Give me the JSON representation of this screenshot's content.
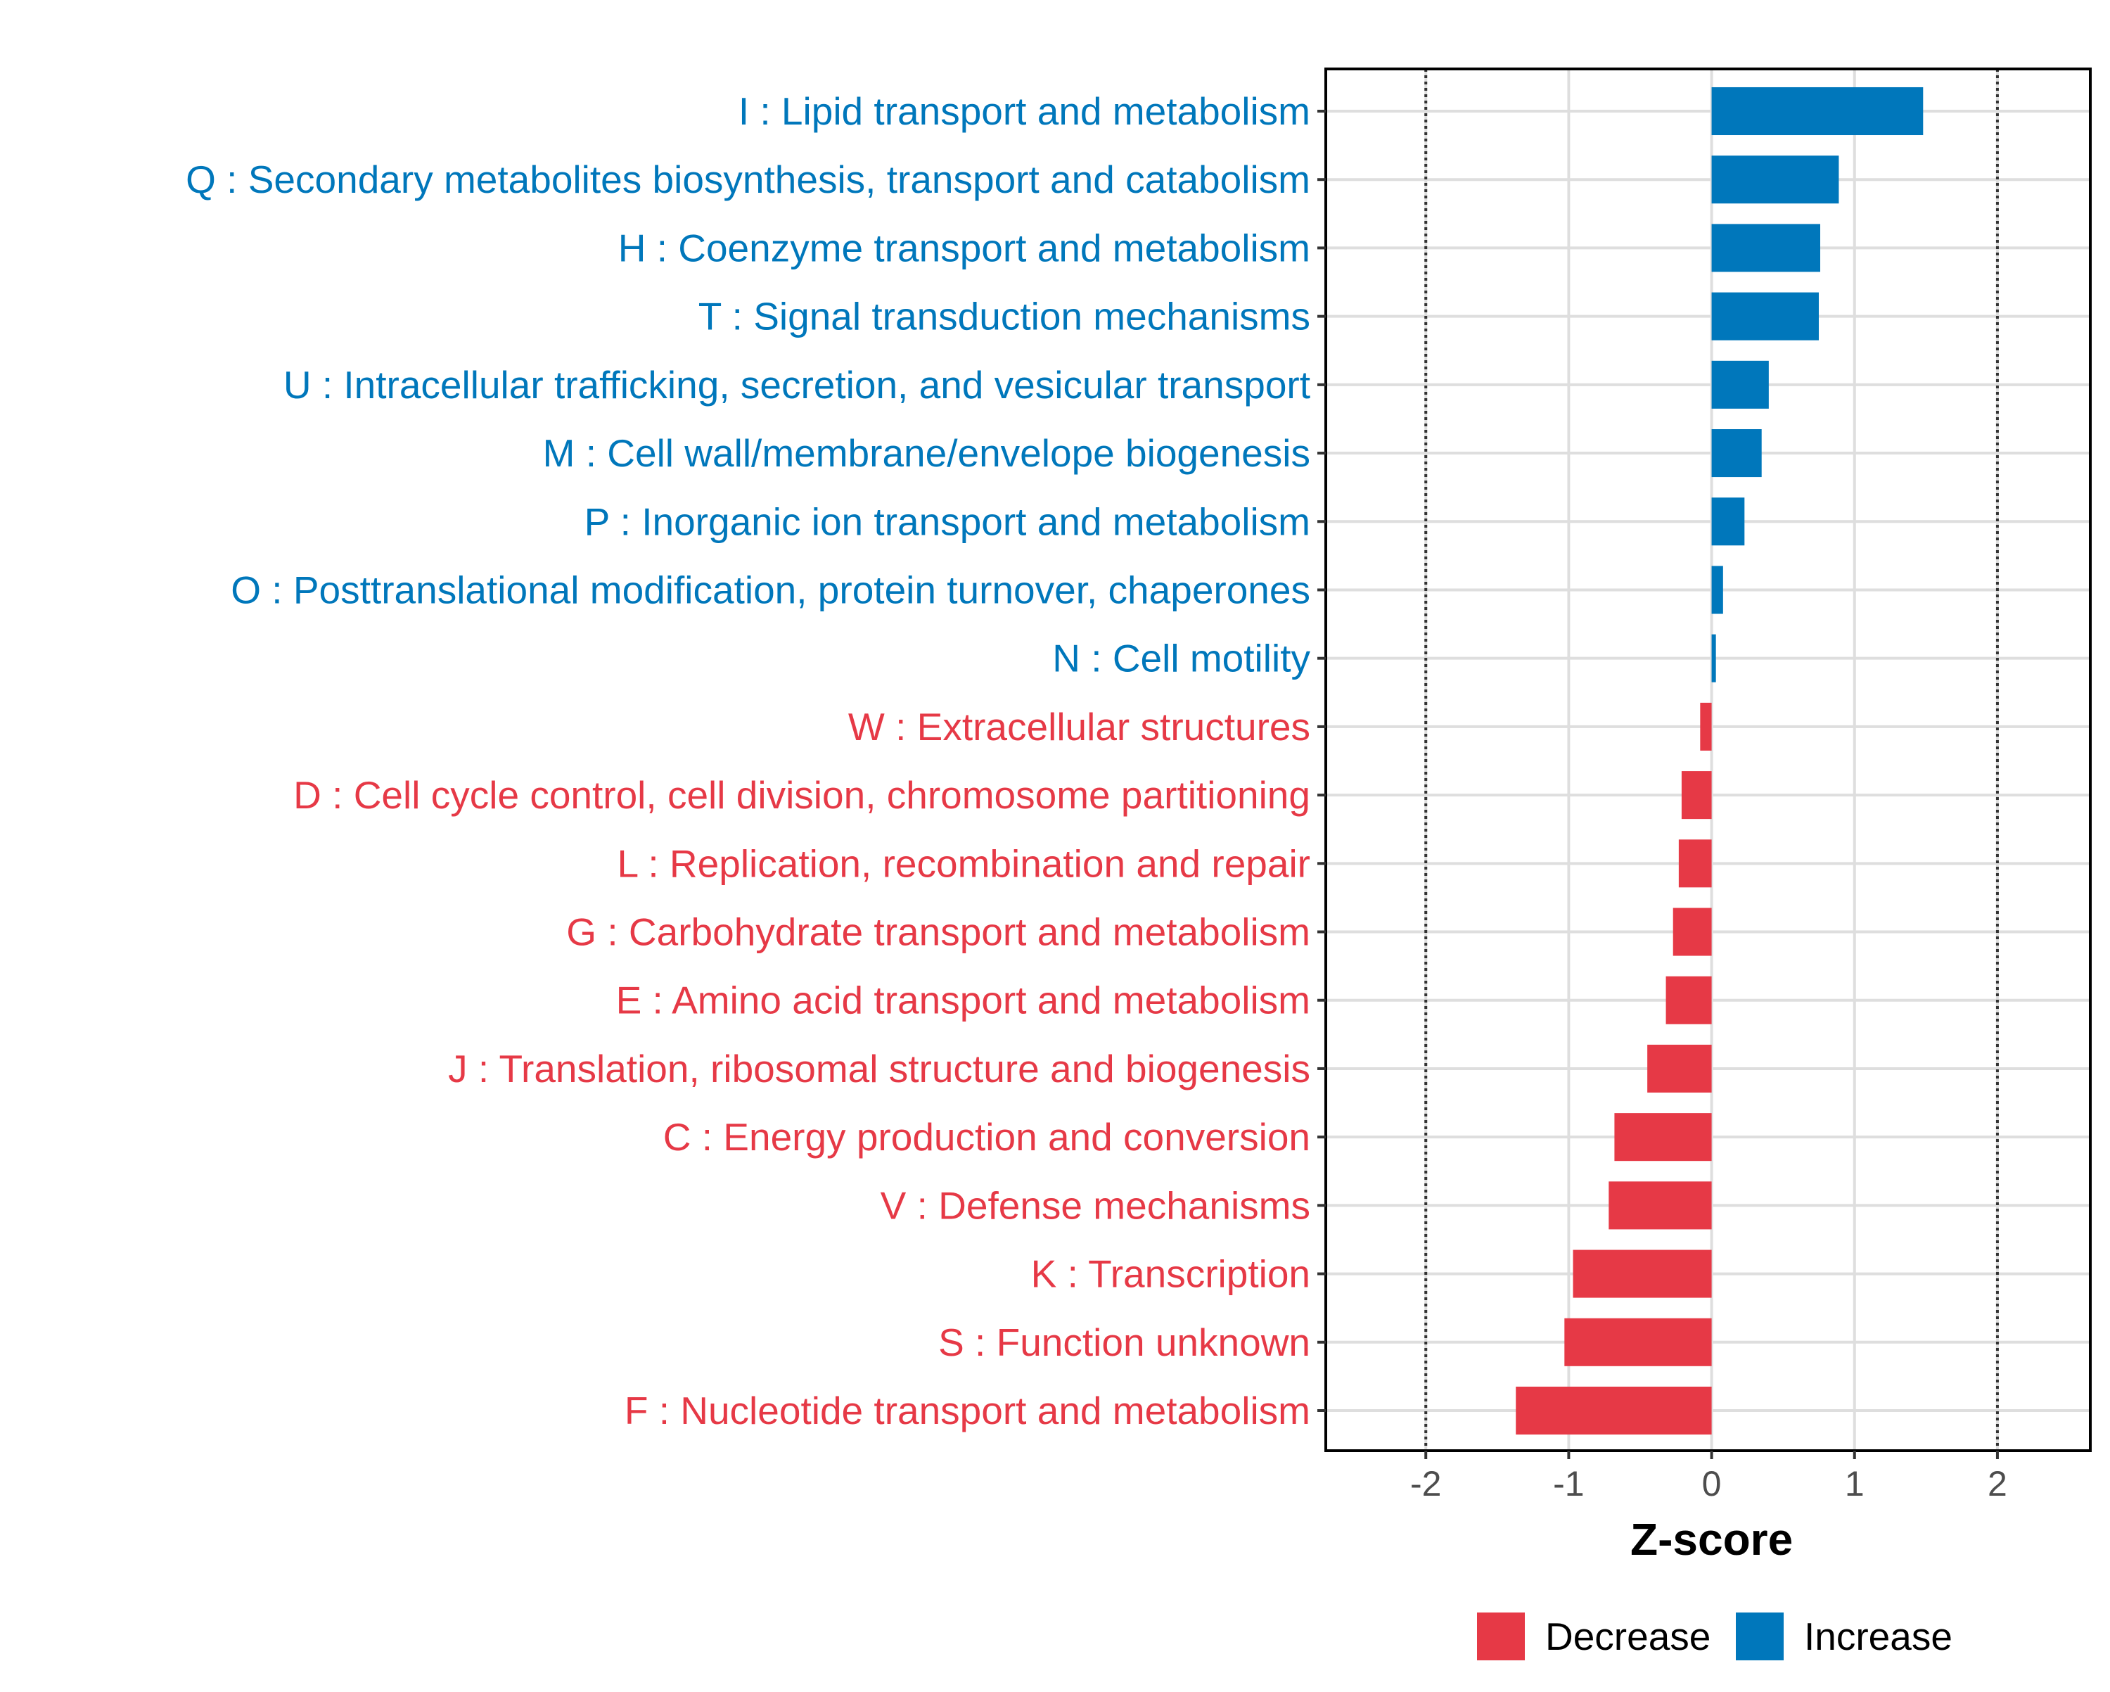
{
  "chart_data": {
    "type": "bar",
    "orientation": "horizontal",
    "title": "",
    "xlabel": "Z-score",
    "ylabel": "",
    "xlim": [
      -2.7,
      2.65
    ],
    "xticks": [
      {
        "value": -2,
        "label": "-2"
      },
      {
        "value": -1,
        "label": "-1"
      },
      {
        "value": 0,
        "label": "0"
      },
      {
        "value": 1,
        "label": "1"
      },
      {
        "value": 2,
        "label": "2"
      }
    ],
    "reference_lines": [
      -2,
      2
    ],
    "grid": true,
    "colors": {
      "Increase": "#0077BB",
      "Decrease": "#E63946"
    },
    "categories": [
      "I : Lipid transport and metabolism",
      "Q : Secondary metabolites biosynthesis, transport and catabolism",
      "H : Coenzyme transport and metabolism",
      "T : Signal transduction mechanisms",
      "U : Intracellular trafficking, secretion, and vesicular transport",
      "M : Cell wall/membrane/envelope biogenesis",
      "P : Inorganic ion transport and metabolism",
      "O : Posttranslational modification, protein turnover, chaperones",
      "N : Cell motility",
      "W : Extracellular structures",
      "D : Cell cycle control, cell division, chromosome partitioning",
      "L : Replication, recombination and repair",
      "G : Carbohydrate transport and metabolism",
      "E : Amino acid transport and metabolism",
      "J : Translation, ribosomal structure and biogenesis",
      "C : Energy production and conversion",
      "V : Defense mechanisms",
      "K : Transcription",
      "S : Function unknown",
      "F : Nucleotide transport and metabolism"
    ],
    "values": [
      1.48,
      0.89,
      0.76,
      0.75,
      0.4,
      0.35,
      0.23,
      0.08,
      0.03,
      -0.08,
      -0.21,
      -0.23,
      -0.27,
      -0.32,
      -0.45,
      -0.68,
      -0.72,
      -0.97,
      -1.03,
      -1.37
    ],
    "groups": [
      "Increase",
      "Increase",
      "Increase",
      "Increase",
      "Increase",
      "Increase",
      "Increase",
      "Increase",
      "Increase",
      "Decrease",
      "Decrease",
      "Decrease",
      "Decrease",
      "Decrease",
      "Decrease",
      "Decrease",
      "Decrease",
      "Decrease",
      "Decrease",
      "Decrease"
    ],
    "legend": {
      "position": "bottom-right",
      "entries": [
        {
          "label": "Decrease",
          "color": "#E63946"
        },
        {
          "label": "Increase",
          "color": "#0077BB"
        }
      ]
    }
  }
}
